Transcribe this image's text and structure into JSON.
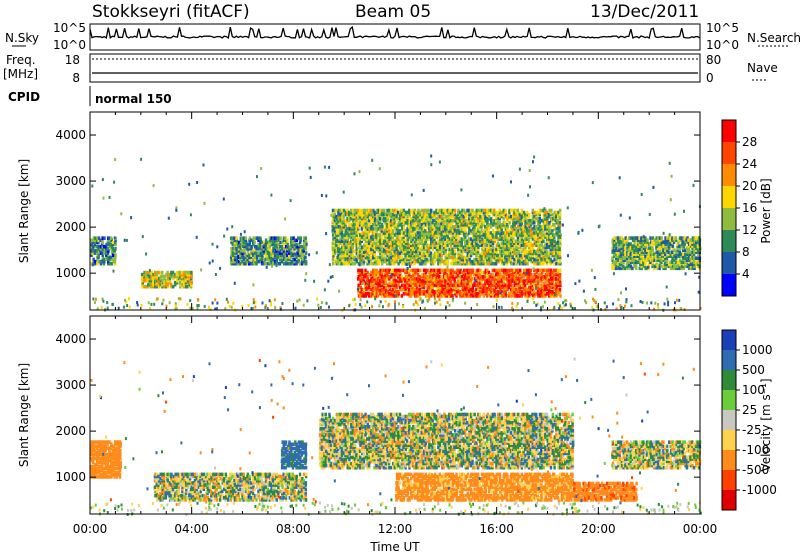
{
  "header": {
    "station": "Stokkseyri (fitACF)",
    "beam": "Beam 05",
    "date": "13/Dec/2011"
  },
  "top_panels": {
    "nsky_label": "N.Sky",
    "nsky_ticks": [
      "10^5",
      "10^0"
    ],
    "nsearch_label": "N.Search",
    "nsearch_ticks": [
      "10^5",
      "10^0"
    ],
    "freq_label": "Freq.",
    "freq_unit": "[MHz]",
    "freq_ticks": [
      "18",
      "8"
    ],
    "nave_label": "Nave",
    "nave_ticks": [
      "80",
      "0"
    ],
    "cpid_label": "CPID",
    "cpid_value": "normal 150"
  },
  "x_axis": {
    "label": "Time UT",
    "ticks": [
      "00:00",
      "04:00",
      "08:00",
      "12:00",
      "16:00",
      "20:00",
      "00:00"
    ]
  },
  "colorbars": {
    "power": {
      "label": "Power [dB]",
      "ticks": [
        "28",
        "24",
        "20",
        "16",
        "12",
        "8",
        "4"
      ],
      "colors": [
        "#ff0000",
        "#ff4500",
        "#ff8c00",
        "#ffd700",
        "#8fbc3f",
        "#2e8b57",
        "#1e5aa8",
        "#0000ff"
      ]
    },
    "velocity": {
      "label": "Velocity [m s⁻¹]",
      "ticks": [
        "1000",
        "500",
        "100",
        "25",
        "-25",
        "-100",
        "-500",
        "-1000"
      ],
      "colors": [
        "#1b3fb8",
        "#2e6db0",
        "#2f8a3a",
        "#6ccc3a",
        "#c8c8c0",
        "#ffd24d",
        "#ff8c1a",
        "#ff4000",
        "#e00000"
      ]
    }
  },
  "chart_data": [
    {
      "type": "heatmap",
      "ylabel": "Slant Range [km]",
      "yticks": [
        "4000",
        "3000",
        "2000",
        "1000"
      ],
      "ylim": [
        200,
        4500
      ],
      "xlim_hours": [
        0,
        24
      ],
      "quantity": "Power [dB]",
      "regions": [
        {
          "t": [
            0.0,
            1.0
          ],
          "r": [
            1200,
            1800
          ],
          "value": 10
        },
        {
          "t": [
            2.0,
            4.0
          ],
          "r": [
            700,
            1050
          ],
          "value": 16
        },
        {
          "t": [
            5.5,
            8.5
          ],
          "r": [
            1200,
            1800
          ],
          "value": 10
        },
        {
          "t": [
            9.5,
            18.5
          ],
          "r": [
            1200,
            2400
          ],
          "value": 14
        },
        {
          "t": [
            10.5,
            18.5
          ],
          "r": [
            500,
            1100
          ],
          "value": 26
        },
        {
          "t": [
            20.5,
            24.0
          ],
          "r": [
            1100,
            1800
          ],
          "value": 12
        }
      ]
    },
    {
      "type": "heatmap",
      "ylabel": "Slant Range [km]",
      "yticks": [
        "4000",
        "3000",
        "2000",
        "1000"
      ],
      "ylim": [
        200,
        4500
      ],
      "xlim_hours": [
        0,
        24
      ],
      "quantity": "Velocity [m s-1]",
      "regions": [
        {
          "t": [
            0.0,
            1.2
          ],
          "r": [
            1000,
            1800
          ],
          "value": -300
        },
        {
          "t": [
            2.5,
            8.5
          ],
          "r": [
            500,
            1100
          ],
          "value": 0
        },
        {
          "t": [
            7.5,
            8.5
          ],
          "r": [
            1200,
            1800
          ],
          "value": 200
        },
        {
          "t": [
            9.0,
            19.0
          ],
          "r": [
            1200,
            2400
          ],
          "value": 0
        },
        {
          "t": [
            12.0,
            19.0
          ],
          "r": [
            500,
            1100
          ],
          "value": -200
        },
        {
          "t": [
            20.5,
            24.0
          ],
          "r": [
            1200,
            1800
          ],
          "value": 0
        },
        {
          "t": [
            19.0,
            21.5
          ],
          "r": [
            500,
            900
          ],
          "value": -400
        }
      ]
    }
  ]
}
